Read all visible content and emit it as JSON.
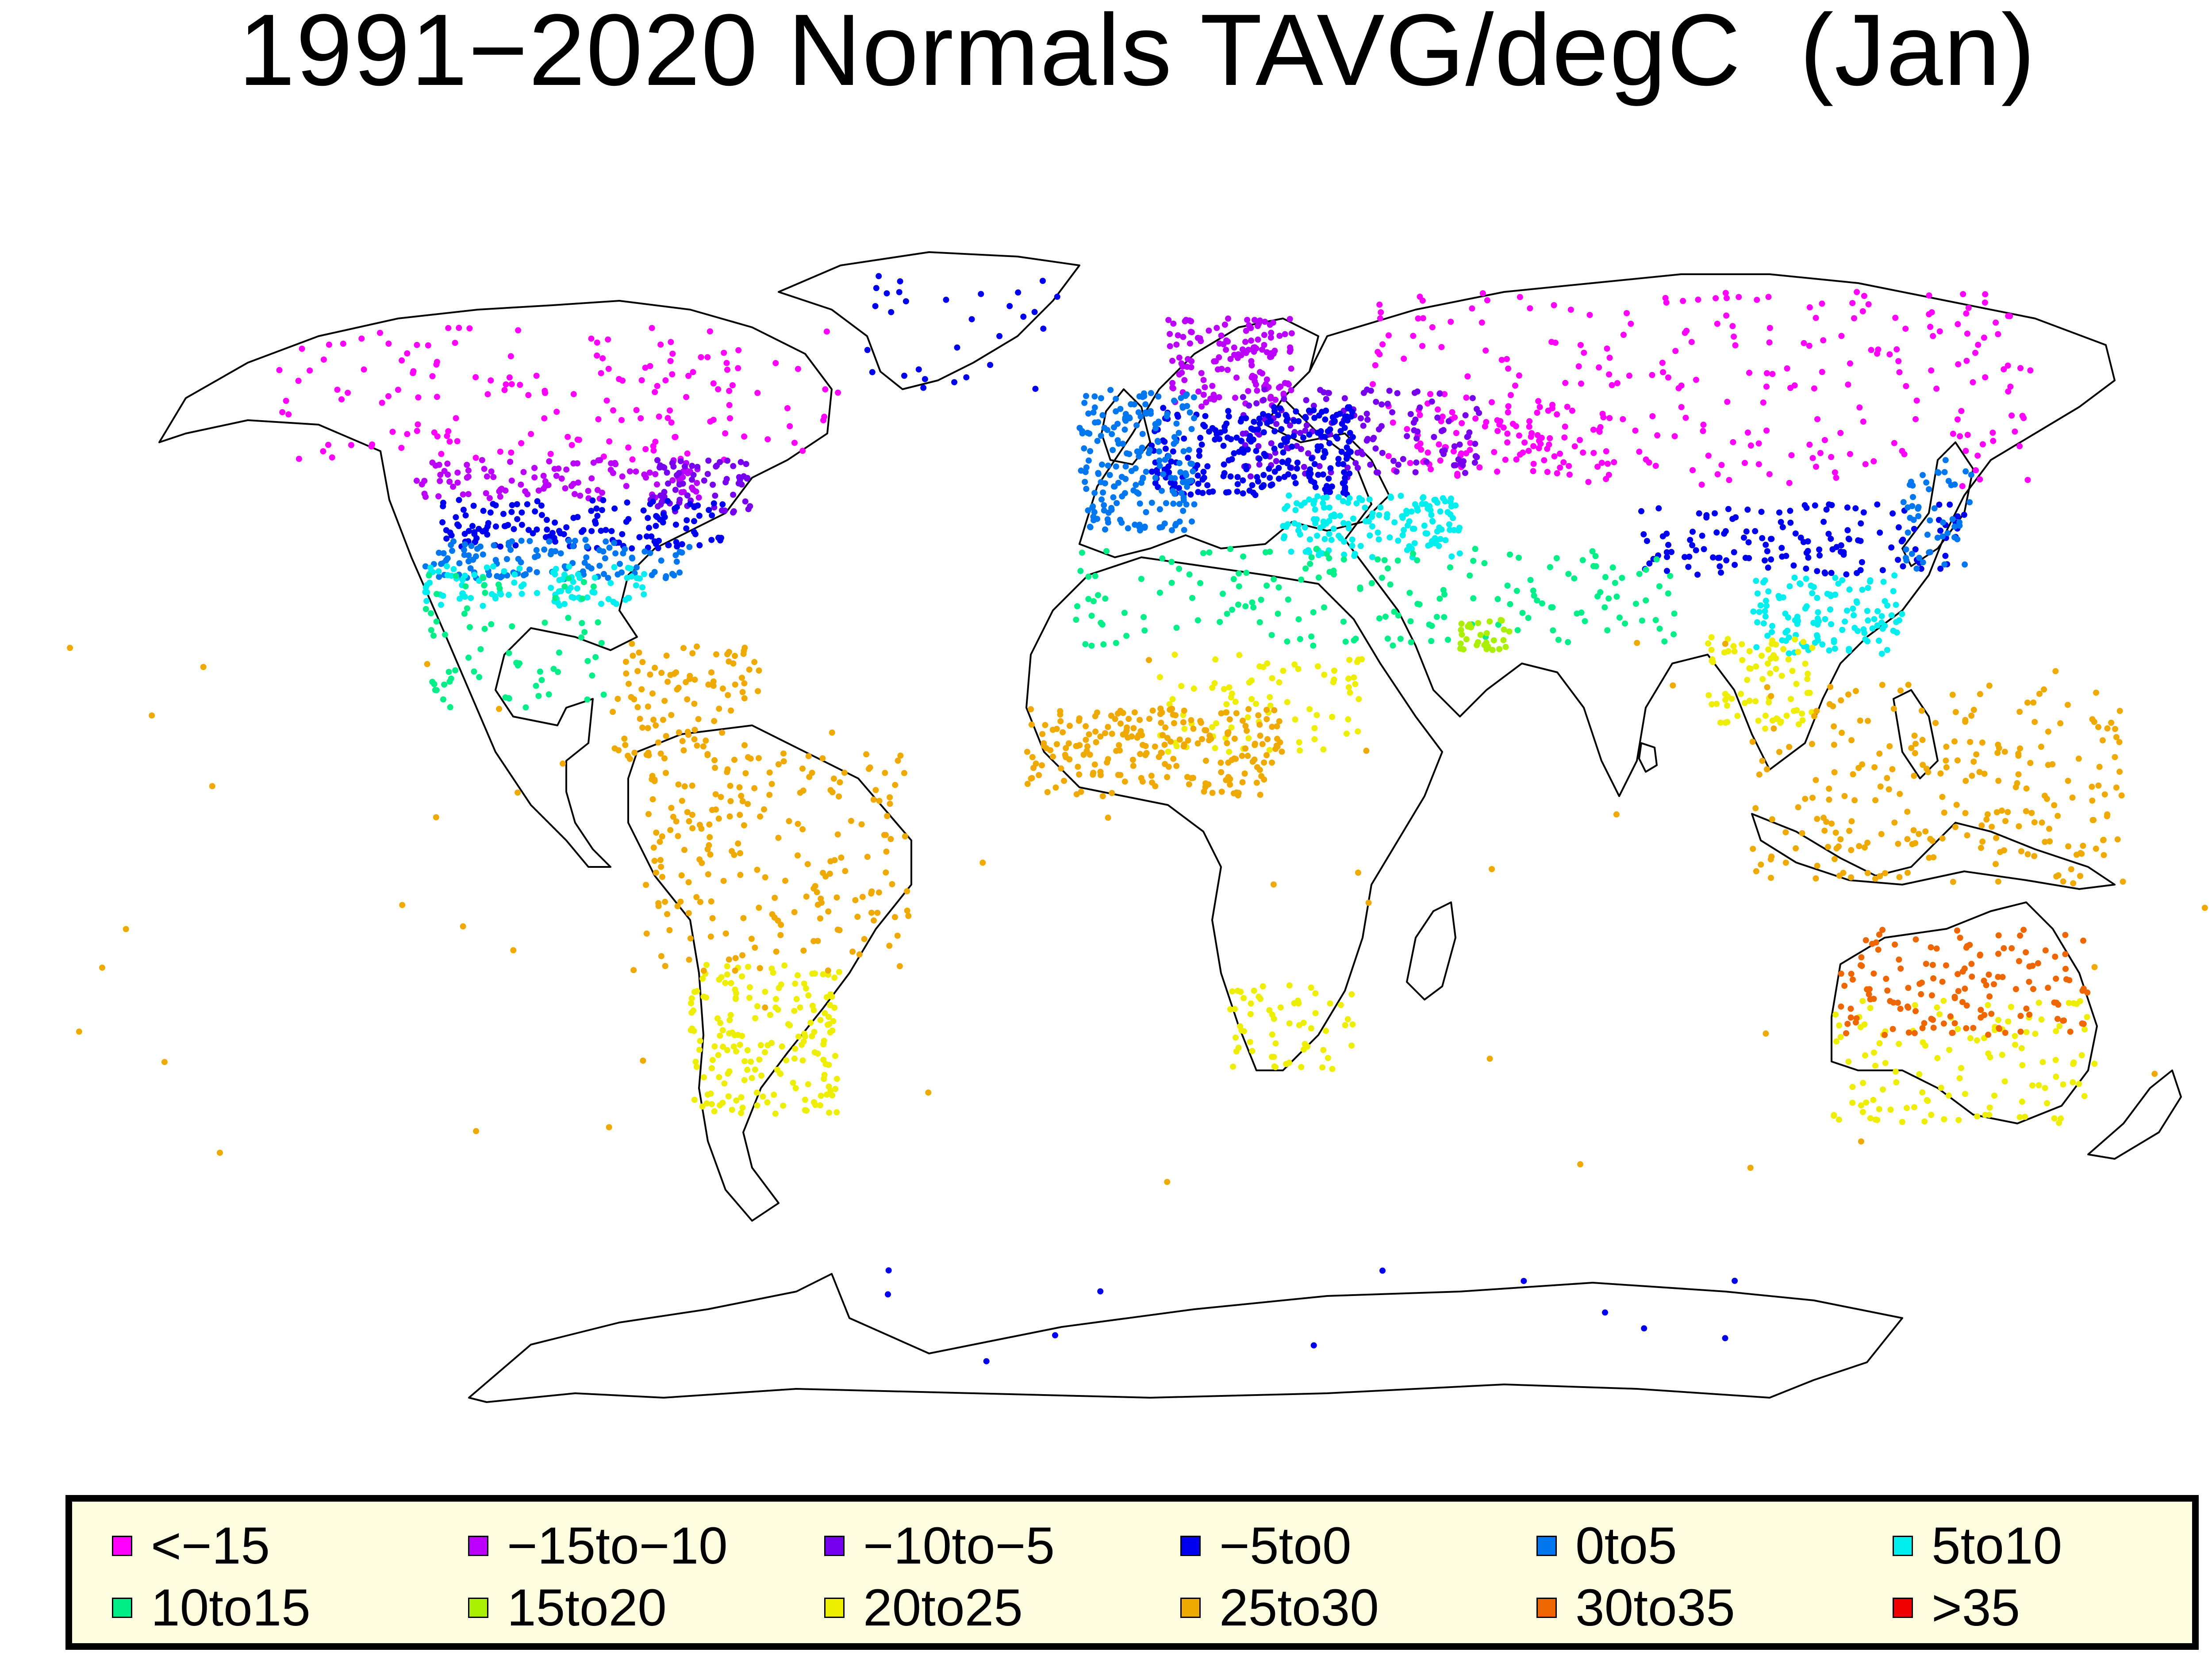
{
  "title": "1991−2020 Normals TAVG/degC  (Jan)",
  "legend": {
    "items": [
      {
        "label": "<−15",
        "color": "#ff00ff"
      },
      {
        "label": "−15to−10",
        "color": "#bb00ff"
      },
      {
        "label": "−10to−5",
        "color": "#7700ee"
      },
      {
        "label": "−5to0",
        "color": "#0000ee"
      },
      {
        "label": "0to5",
        "color": "#0077ee"
      },
      {
        "label": "5to10",
        "color": "#00eeee"
      },
      {
        "label": "10to15",
        "color": "#00ee88"
      },
      {
        "label": "15to20",
        "color": "#aaee00"
      },
      {
        "label": "20to25",
        "color": "#eeee00"
      },
      {
        "label": "25to30",
        "color": "#eeaa00"
      },
      {
        "label": "30to35",
        "color": "#ee6600"
      },
      {
        "label": ">35",
        "color": "#ee0000"
      }
    ]
  },
  "map": {
    "projection": "Robinson-like world map",
    "coastline_color": "#000000",
    "station_groups": [
      {
        "region": "Arctic Canada / Alaska",
        "bin": "<−15"
      },
      {
        "region": "Siberia",
        "bin": "<−15"
      },
      {
        "region": "Central Asia / Kazakhstan",
        "bin": "<−15"
      },
      {
        "region": "Northern Plains USA / Southern Canada",
        "bin": "−15to−10"
      },
      {
        "region": "Scandinavia / Finland",
        "bin": "−15to−10"
      },
      {
        "region": "Great Lakes / New England",
        "bin": "−10to−5"
      },
      {
        "region": "Russia / Eastern Europe",
        "bin": "−10to−5"
      },
      {
        "region": "Central USA",
        "bin": "−5to0"
      },
      {
        "region": "Central Europe",
        "bin": "−5to0"
      },
      {
        "region": "Northern China / Korea",
        "bin": "−5to0"
      },
      {
        "region": "Greenland coast",
        "bin": "−5to0"
      },
      {
        "region": "Antarctica coast",
        "bin": "−5to0"
      },
      {
        "region": "Southern USA",
        "bin": "0to5"
      },
      {
        "region": "Western Europe / British Isles",
        "bin": "0to5"
      },
      {
        "region": "Japan",
        "bin": "0to5"
      },
      {
        "region": "Gulf Coast USA",
        "bin": "5to10"
      },
      {
        "region": "Mediterranean / Turkey",
        "bin": "5to10"
      },
      {
        "region": "Southern China",
        "bin": "5to10"
      },
      {
        "region": "Mexico",
        "bin": "10to15"
      },
      {
        "region": "North Africa / Middle East",
        "bin": "10to15"
      },
      {
        "region": "Florida / Arabian Gulf",
        "bin": "15to20"
      },
      {
        "region": "Southeast Asia mainland",
        "bin": "20to25"
      },
      {
        "region": "Sahel / Sudan",
        "bin": "20to25"
      },
      {
        "region": "Southern Africa",
        "bin": "20to25"
      },
      {
        "region": "Argentina / Southern Brazil",
        "bin": "20to25"
      },
      {
        "region": "Southern Australia",
        "bin": "20to25"
      },
      {
        "region": "Caribbean / Central America",
        "bin": "25to30"
      },
      {
        "region": "Northern South America / Brazil",
        "bin": "25to30"
      },
      {
        "region": "West Africa",
        "bin": "25to30"
      },
      {
        "region": "Indonesia / Philippines",
        "bin": "25to30"
      },
      {
        "region": "Pacific Islands",
        "bin": "25to30"
      },
      {
        "region": "Northern Australia",
        "bin": "30to35"
      }
    ]
  }
}
